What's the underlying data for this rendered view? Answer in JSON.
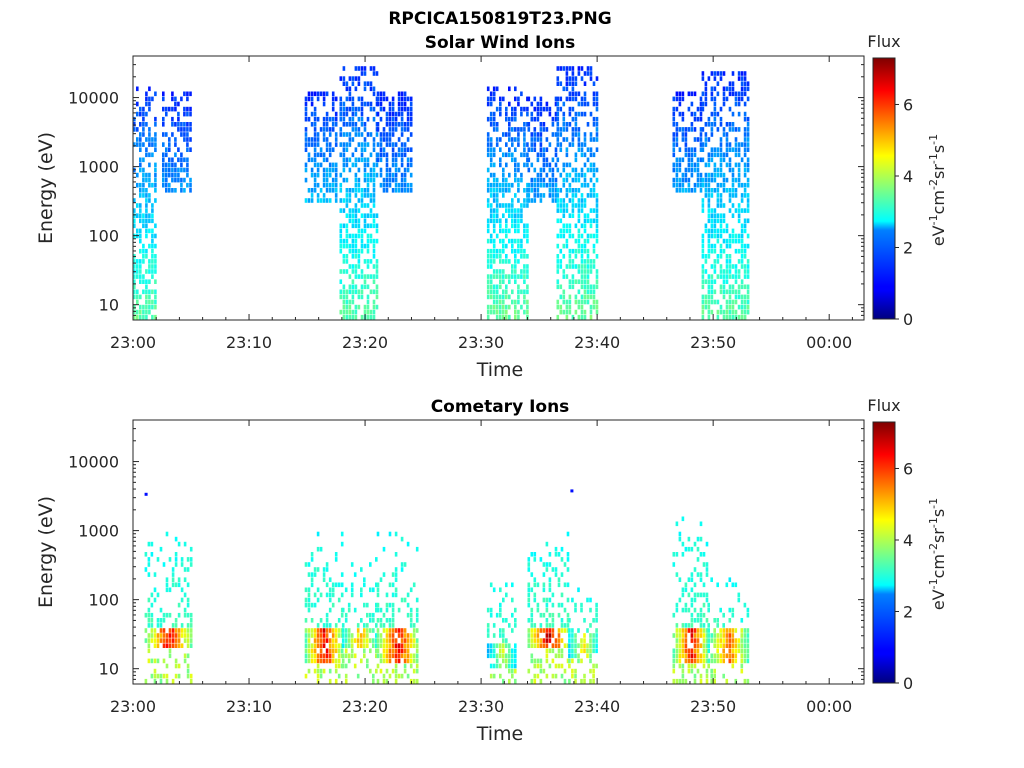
{
  "figure": {
    "title": "RPCICA150819T23.PNG"
  },
  "chart_data": [
    {
      "type": "heatmap",
      "title": "Solar Wind Ions",
      "xlabel": "Time",
      "ylabel": "Energy (eV)",
      "x_start": "23:00",
      "x_end_minutes_after_start": 63,
      "x_ticks": [
        "23:00",
        "23:10",
        "23:20",
        "23:30",
        "23:40",
        "23:50",
        "00:00"
      ],
      "y_scale": "log",
      "ylim": [
        6,
        40000
      ],
      "y_ticks": [
        10,
        100,
        1000,
        10000
      ],
      "y_tick_labels": [
        "10",
        "100",
        "1000",
        "10000"
      ],
      "colorbar": {
        "label": "Flux",
        "unit": "eV-1 cm-2 sr-1 s-1",
        "range": [
          0,
          7.3
        ],
        "ticks": [
          0,
          2,
          4,
          6
        ],
        "colormap": "jet"
      },
      "bursts": [
        {
          "start_min": 0.0,
          "end_min": 2.0,
          "emin": 6,
          "emax": 15000,
          "peak_flux": 3.4
        },
        {
          "start_min": 2.5,
          "end_min": 5.0,
          "emin": 400,
          "emax": 12000,
          "peak_flux": 2.0
        },
        {
          "start_min": 14.8,
          "end_min": 17.5,
          "emin": 300,
          "emax": 12000,
          "peak_flux": 2.3
        },
        {
          "start_min": 17.8,
          "end_min": 21.0,
          "emin": 6,
          "emax": 30000,
          "peak_flux": 3.4
        },
        {
          "start_min": 21.0,
          "end_min": 24.0,
          "emin": 400,
          "emax": 12000,
          "peak_flux": 2.0
        },
        {
          "start_min": 30.5,
          "end_min": 34.0,
          "emin": 6,
          "emax": 15000,
          "peak_flux": 3.5
        },
        {
          "start_min": 34.0,
          "end_min": 36.5,
          "emin": 300,
          "emax": 10000,
          "peak_flux": 2.1
        },
        {
          "start_min": 36.5,
          "end_min": 40.0,
          "emin": 6,
          "emax": 30000,
          "peak_flux": 3.5
        },
        {
          "start_min": 46.5,
          "end_min": 49.0,
          "emin": 400,
          "emax": 12000,
          "peak_flux": 2.1
        },
        {
          "start_min": 49.0,
          "end_min": 53.0,
          "emin": 6,
          "emax": 25000,
          "peak_flux": 3.4
        }
      ]
    },
    {
      "type": "heatmap",
      "title": "Cometary Ions",
      "xlabel": "Time",
      "ylabel": "Energy (eV)",
      "x_start": "23:00",
      "x_end_minutes_after_start": 63,
      "x_ticks": [
        "23:00",
        "23:10",
        "23:20",
        "23:30",
        "23:40",
        "23:50",
        "00:00"
      ],
      "y_scale": "log",
      "ylim": [
        6,
        40000
      ],
      "y_ticks": [
        10,
        100,
        1000,
        10000
      ],
      "y_tick_labels": [
        "10",
        "100",
        "1000",
        "10000"
      ],
      "colorbar": {
        "label": "Flux",
        "unit": "eV-1 cm-2 sr-1 s-1",
        "range": [
          0,
          7.3
        ],
        "ticks": [
          0,
          2,
          4,
          6
        ],
        "colormap": "jet"
      },
      "bursts": [
        {
          "start_min": 1.0,
          "end_min": 5.0,
          "emin": 6,
          "emax": 900,
          "core_emin": 20,
          "core_emax": 40,
          "peak_flux": 6.8
        },
        {
          "start_min": 14.8,
          "end_min": 18.0,
          "emin": 6,
          "emax": 900,
          "core_emin": 12,
          "core_emax": 40,
          "peak_flux": 6.9
        },
        {
          "start_min": 18.0,
          "end_min": 21.0,
          "emin": 6,
          "emax": 400,
          "core_emin": 20,
          "core_emax": 40,
          "peak_flux": 5.5
        },
        {
          "start_min": 21.0,
          "end_min": 24.5,
          "emin": 6,
          "emax": 900,
          "core_emin": 12,
          "core_emax": 40,
          "peak_flux": 6.9
        },
        {
          "start_min": 30.5,
          "end_min": 33.0,
          "emin": 6,
          "emax": 250,
          "core_emin": 10,
          "core_emax": 25,
          "peak_flux": 4.5
        },
        {
          "start_min": 34.0,
          "end_min": 37.5,
          "emin": 6,
          "emax": 900,
          "core_emin": 20,
          "core_emax": 40,
          "peak_flux": 7.2
        },
        {
          "start_min": 37.5,
          "end_min": 40.0,
          "emin": 6,
          "emax": 150,
          "core_emin": 15,
          "core_emax": 35,
          "peak_flux": 5.0
        },
        {
          "start_min": 46.5,
          "end_min": 49.5,
          "emin": 6,
          "emax": 1500,
          "core_emin": 12,
          "core_emax": 40,
          "peak_flux": 6.8
        },
        {
          "start_min": 49.5,
          "end_min": 53.0,
          "emin": 6,
          "emax": 200,
          "core_emin": 12,
          "core_emax": 40,
          "peak_flux": 6.0
        }
      ],
      "isolated_points": [
        {
          "t_min": 1.0,
          "energy": 3300,
          "flux": 1.0
        },
        {
          "t_min": 37.7,
          "energy": 3700,
          "flux": 1.0
        }
      ]
    }
  ]
}
